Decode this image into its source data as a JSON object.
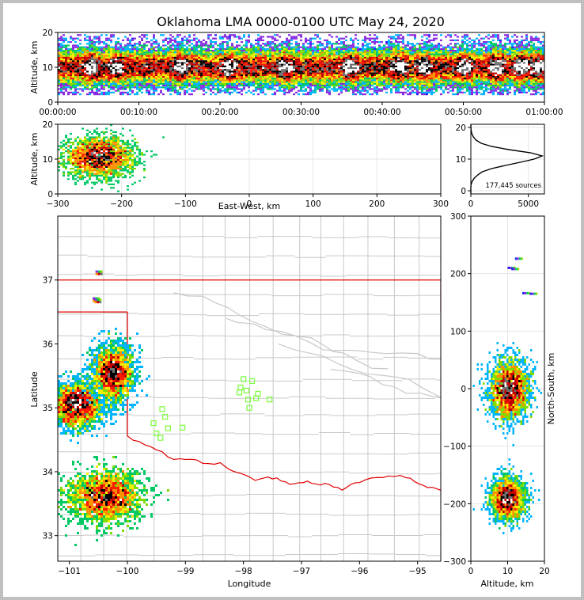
{
  "chart_data": [
    {
      "panel": "time-altitude",
      "type": "heatmap",
      "title": "Oklahoma LMA 0000-0100 UTC May 24, 2020",
      "ylabel": "Altitude, km",
      "xticks": [
        "00:00:00",
        "00:10:00",
        "00:20:00",
        "00:30:00",
        "00:40:00",
        "00:50:00",
        "01:00:00"
      ],
      "yticks": [
        "0",
        "10",
        "20"
      ],
      "xlim_min": [
        0,
        60
      ],
      "ylim": [
        0,
        20
      ],
      "band_center_km": 10,
      "band_halfwidth_km": 6,
      "intense_minutes": [
        4,
        7,
        15,
        21,
        28,
        36,
        42,
        45,
        50,
        54,
        57,
        59
      ]
    },
    {
      "panel": "east-west-altitude",
      "type": "heatmap",
      "xlabel": "East-West, km",
      "ylabel": "Altitude, km",
      "xticks": [
        "−300",
        "−200",
        "−100",
        "0",
        "100",
        "200",
        "300"
      ],
      "yticks": [
        "0",
        "10",
        "20"
      ],
      "xlim": [
        -300,
        300
      ],
      "ylim": [
        0,
        20
      ],
      "clusters": [
        {
          "x": -235,
          "z": 10.5,
          "sx": 50,
          "sz": 5
        }
      ]
    },
    {
      "panel": "altitude-histogram",
      "type": "line",
      "annotation": "177,445 sources",
      "xticks": [
        "0",
        "5000"
      ],
      "yticks": [
        "0",
        "10",
        "20"
      ],
      "xlim": [
        0,
        6400
      ],
      "ylim": [
        -1,
        21
      ],
      "profile": [
        [
          -1,
          0
        ],
        [
          1,
          0
        ],
        [
          2,
          20
        ],
        [
          3,
          120
        ],
        [
          4,
          300
        ],
        [
          5,
          600
        ],
        [
          6,
          1000
        ],
        [
          7,
          1800
        ],
        [
          8,
          3000
        ],
        [
          9,
          4300
        ],
        [
          10,
          5500
        ],
        [
          11,
          6200
        ],
        [
          12,
          5200
        ],
        [
          13,
          3300
        ],
        [
          14,
          1800
        ],
        [
          15,
          900
        ],
        [
          16,
          450
        ],
        [
          17,
          220
        ],
        [
          18,
          90
        ],
        [
          19,
          30
        ],
        [
          20,
          5
        ],
        [
          21,
          0
        ]
      ]
    },
    {
      "panel": "plan-view",
      "type": "scatter",
      "xlabel": "Longitude",
      "ylabel": "Latitude",
      "xticks": [
        "−101",
        "−100",
        "−99",
        "−98",
        "−97",
        "−96",
        "−95"
      ],
      "yticks": [
        "33",
        "34",
        "35",
        "36",
        "37"
      ],
      "xlim": [
        -101.2,
        -94.6
      ],
      "ylim": [
        32.6,
        38.0
      ],
      "clusters": [
        {
          "lon": -100.85,
          "lat": 35.05,
          "slon": 0.22,
          "slat": 0.18
        },
        {
          "lon": -100.25,
          "lat": 35.55,
          "slon": 0.18,
          "slat": 0.22
        },
        {
          "lon": -100.4,
          "lat": 33.6,
          "slon": 0.32,
          "slat": 0.2
        }
      ],
      "stations": [
        [
          -98.0,
          35.45
        ],
        [
          -97.85,
          35.42
        ],
        [
          -98.05,
          35.32
        ],
        [
          -97.95,
          35.27
        ],
        [
          -98.07,
          35.24
        ],
        [
          -97.75,
          35.22
        ],
        [
          -97.78,
          35.15
        ],
        [
          -97.92,
          35.13
        ],
        [
          -97.55,
          35.13
        ],
        [
          -97.9,
          35.0
        ],
        [
          -99.4,
          34.98
        ],
        [
          -99.35,
          34.86
        ],
        [
          -99.55,
          34.76
        ],
        [
          -99.3,
          34.68
        ],
        [
          -99.05,
          34.69
        ],
        [
          -99.5,
          34.6
        ],
        [
          -99.43,
          34.53
        ]
      ],
      "colors": {
        "border": "#e00000",
        "county": "#c8c8c8",
        "station": "#7cfc3c"
      }
    },
    {
      "panel": "altitude-north-south",
      "type": "heatmap",
      "xlabel": "Altitude, km",
      "ylabel": "North-South, km",
      "xticks": [
        "0",
        "10",
        "20"
      ],
      "yticks": [
        "−300",
        "−200",
        "−100",
        "0",
        "100",
        "200",
        "300"
      ],
      "xlim": [
        0,
        20
      ],
      "ylim": [
        -300,
        300
      ],
      "clusters": [
        {
          "z": 10.5,
          "y": 0,
          "sz": 4.5,
          "sy": 42
        },
        {
          "z": 10,
          "y": -192,
          "sz": 3.8,
          "sy": 30
        }
      ]
    }
  ]
}
